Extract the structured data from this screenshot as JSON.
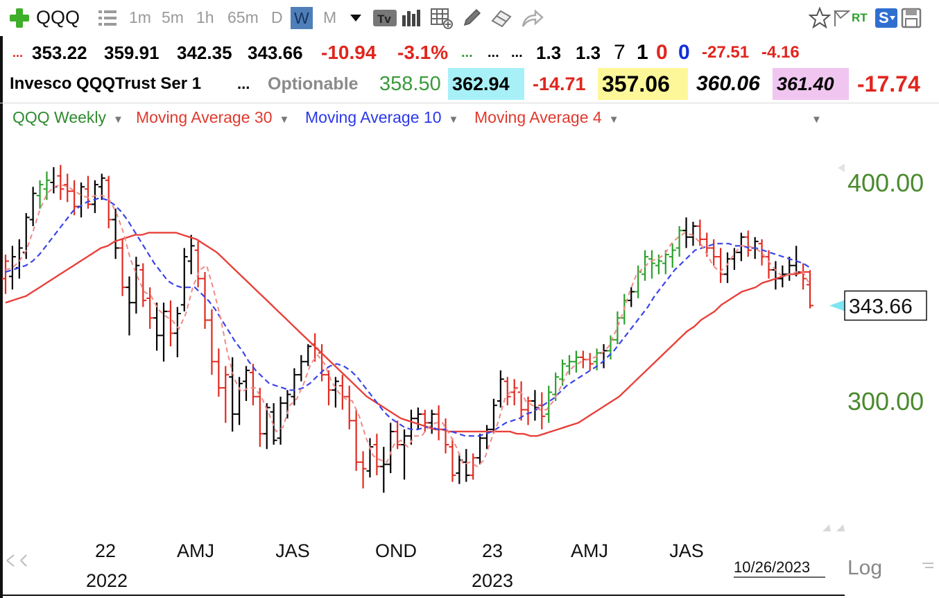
{
  "toolbar": {
    "symbol": "QQQ",
    "intervals": [
      "1m",
      "5m",
      "1h",
      "65m",
      "D",
      "W",
      "M"
    ],
    "active_interval": "W",
    "icons": [
      "add-symbol-icon",
      "list-icon",
      "dropdown-arrow-icon",
      "ticker-text-icon",
      "bar-chart-icon",
      "table-icon",
      "pencil-icon",
      "eraser-icon",
      "share-arrow-icon",
      "star-icon",
      "flag-icon",
      "rt-icon",
      "s-icon",
      "save-icon"
    ],
    "rt_label": "RT",
    "s_label": "S"
  },
  "quote_row1": {
    "lead": "...",
    "open": "353.22",
    "high": "359.91",
    "low": "342.35",
    "close": "343.66",
    "change": "-10.94",
    "change_pct": "-3.1%",
    "dots_green": "...",
    "dots_a": "...",
    "dots_b": "...",
    "val1": "1.3",
    "val2": "1.3",
    "n1": "7",
    "n2": "1",
    "n3": "0",
    "n4": "0",
    "chg2": "-27.51",
    "chg3": "-4.16"
  },
  "quote_row2": {
    "name": "Invesco QQQTrust Ser 1",
    "dots": "...",
    "optionable": "Optionable",
    "v1": "358.50",
    "v2": "362.94",
    "v3": "-14.71",
    "v4": "357.06",
    "v5": "360.06",
    "v6": "361.40",
    "v7": "-17.74",
    "colors": {
      "v2_bg": "#a8f0f8",
      "v4_bg": "#fdf79a",
      "v6_bg": "#f0c6f0"
    }
  },
  "legend": {
    "series_main": "QQQ Weekly",
    "ma30": "Moving Average 30",
    "ma10": "Moving Average 10",
    "ma4": "Moving Average 4",
    "colors": {
      "main": "#2e8a2e",
      "ma30": "#e0392e",
      "ma10": "#2b38e8",
      "ma4": "#e0392e"
    }
  },
  "chart_data": {
    "type": "line",
    "price_type": "weekly OHLC bars",
    "ylim": [
      230,
      420
    ],
    "y_ticks": [
      300,
      400
    ],
    "y_tick_labels": [
      "300.00",
      "400.00"
    ],
    "x_tick_labels": [
      "22",
      "AMJ",
      "JAS",
      "OND",
      "23",
      "AMJ",
      "JAS"
    ],
    "x_year_labels": [
      "2022",
      "2023"
    ],
    "last_price_label": "343.66",
    "last_price": 343.66,
    "date_label": "10/26/2023",
    "scale_label": "Log",
    "bar_colors": {
      "up": "#2aa02a",
      "down": "#e02a20",
      "neutral": "#000000"
    },
    "bars": [
      {
        "o": 356,
        "h": 367,
        "l": 349,
        "c": 364,
        "col": "down"
      },
      {
        "o": 357,
        "h": 371,
        "l": 351,
        "c": 366,
        "col": "neutral"
      },
      {
        "o": 361,
        "h": 374,
        "l": 356,
        "c": 370,
        "col": "neutral"
      },
      {
        "o": 368,
        "h": 386,
        "l": 365,
        "c": 384,
        "col": "neutral"
      },
      {
        "o": 383,
        "h": 398,
        "l": 380,
        "c": 395,
        "col": "neutral"
      },
      {
        "o": 394,
        "h": 401,
        "l": 388,
        "c": 399,
        "col": "up"
      },
      {
        "o": 397,
        "h": 405,
        "l": 392,
        "c": 401,
        "col": "up"
      },
      {
        "o": 400,
        "h": 407,
        "l": 395,
        "c": 398,
        "col": "neutral"
      },
      {
        "o": 403,
        "h": 408,
        "l": 392,
        "c": 397,
        "col": "down"
      },
      {
        "o": 399,
        "h": 404,
        "l": 391,
        "c": 396,
        "col": "red"
      },
      {
        "o": 396,
        "h": 401,
        "l": 385,
        "c": 389,
        "col": "down"
      },
      {
        "o": 389,
        "h": 400,
        "l": 384,
        "c": 398,
        "col": "neutral"
      },
      {
        "o": 397,
        "h": 403,
        "l": 388,
        "c": 390,
        "col": "down"
      },
      {
        "o": 390,
        "h": 401,
        "l": 386,
        "c": 399,
        "col": "neutral"
      },
      {
        "o": 398,
        "h": 404,
        "l": 392,
        "c": 402,
        "col": "neutral"
      },
      {
        "o": 401,
        "h": 403,
        "l": 379,
        "c": 383,
        "col": "down"
      },
      {
        "o": 383,
        "h": 388,
        "l": 365,
        "c": 370,
        "col": "neutral"
      },
      {
        "o": 370,
        "h": 374,
        "l": 348,
        "c": 352,
        "col": "down"
      },
      {
        "o": 352,
        "h": 357,
        "l": 330,
        "c": 345,
        "col": "neutral"
      },
      {
        "o": 345,
        "h": 366,
        "l": 340,
        "c": 362,
        "col": "neutral"
      },
      {
        "o": 360,
        "h": 363,
        "l": 343,
        "c": 346,
        "col": "down"
      },
      {
        "o": 347,
        "h": 352,
        "l": 333,
        "c": 338,
        "col": "down"
      },
      {
        "o": 338,
        "h": 345,
        "l": 323,
        "c": 330,
        "col": "neutral"
      },
      {
        "o": 330,
        "h": 345,
        "l": 318,
        "c": 341,
        "col": "neutral"
      },
      {
        "o": 341,
        "h": 346,
        "l": 325,
        "c": 331,
        "col": "down"
      },
      {
        "o": 331,
        "h": 343,
        "l": 320,
        "c": 340,
        "col": "neutral"
      },
      {
        "o": 344,
        "h": 370,
        "l": 341,
        "c": 366,
        "col": "neutral"
      },
      {
        "o": 364,
        "h": 376,
        "l": 358,
        "c": 371,
        "col": "neutral"
      },
      {
        "o": 369,
        "h": 373,
        "l": 352,
        "c": 356,
        "col": "down"
      },
      {
        "o": 356,
        "h": 359,
        "l": 333,
        "c": 337,
        "col": "down"
      },
      {
        "o": 337,
        "h": 342,
        "l": 312,
        "c": 318,
        "col": "down"
      },
      {
        "o": 318,
        "h": 324,
        "l": 302,
        "c": 306,
        "col": "down"
      },
      {
        "o": 306,
        "h": 316,
        "l": 290,
        "c": 312,
        "col": "down"
      },
      {
        "o": 311,
        "h": 320,
        "l": 286,
        "c": 294,
        "col": "neutral"
      },
      {
        "o": 294,
        "h": 311,
        "l": 289,
        "c": 308,
        "col": "neutral"
      },
      {
        "o": 309,
        "h": 316,
        "l": 300,
        "c": 314,
        "col": "neutral"
      },
      {
        "o": 313,
        "h": 317,
        "l": 298,
        "c": 302,
        "col": "down"
      },
      {
        "o": 302,
        "h": 306,
        "l": 279,
        "c": 285,
        "col": "down"
      },
      {
        "o": 285,
        "h": 299,
        "l": 278,
        "c": 297,
        "col": "neutral"
      },
      {
        "o": 295,
        "h": 299,
        "l": 280,
        "c": 282,
        "col": "neutral"
      },
      {
        "o": 283,
        "h": 302,
        "l": 280,
        "c": 299,
        "col": "neutral"
      },
      {
        "o": 299,
        "h": 305,
        "l": 292,
        "c": 303,
        "col": "neutral"
      },
      {
        "o": 302,
        "h": 315,
        "l": 298,
        "c": 312,
        "col": "neutral"
      },
      {
        "o": 312,
        "h": 321,
        "l": 309,
        "c": 318,
        "col": "neutral"
      },
      {
        "o": 318,
        "h": 326,
        "l": 316,
        "c": 325,
        "col": "neutral"
      },
      {
        "o": 326,
        "h": 331,
        "l": 318,
        "c": 324,
        "col": "down"
      },
      {
        "o": 322,
        "h": 326,
        "l": 309,
        "c": 312,
        "col": "down"
      },
      {
        "o": 312,
        "h": 314,
        "l": 298,
        "c": 305,
        "col": "down"
      },
      {
        "o": 305,
        "h": 311,
        "l": 297,
        "c": 309,
        "col": "neutral"
      },
      {
        "o": 307,
        "h": 312,
        "l": 296,
        "c": 302,
        "col": "down"
      },
      {
        "o": 302,
        "h": 307,
        "l": 287,
        "c": 291,
        "col": "down"
      },
      {
        "o": 291,
        "h": 296,
        "l": 268,
        "c": 272,
        "col": "down"
      },
      {
        "o": 272,
        "h": 277,
        "l": 260,
        "c": 269,
        "col": "down"
      },
      {
        "o": 268,
        "h": 283,
        "l": 265,
        "c": 279,
        "col": "neutral"
      },
      {
        "o": 280,
        "h": 285,
        "l": 266,
        "c": 270,
        "col": "down"
      },
      {
        "o": 270,
        "h": 279,
        "l": 258,
        "c": 271,
        "col": "neutral"
      },
      {
        "o": 271,
        "h": 290,
        "l": 267,
        "c": 286,
        "col": "neutral"
      },
      {
        "o": 286,
        "h": 291,
        "l": 278,
        "c": 280,
        "col": "down"
      },
      {
        "o": 280,
        "h": 287,
        "l": 264,
        "c": 284,
        "col": "neutral"
      },
      {
        "o": 284,
        "h": 296,
        "l": 280,
        "c": 292,
        "col": "neutral"
      },
      {
        "o": 292,
        "h": 297,
        "l": 287,
        "c": 294,
        "col": "neutral"
      },
      {
        "o": 294,
        "h": 296,
        "l": 286,
        "c": 290,
        "col": "down"
      },
      {
        "o": 290,
        "h": 296,
        "l": 285,
        "c": 294,
        "col": "neutral"
      },
      {
        "o": 294,
        "h": 298,
        "l": 282,
        "c": 287,
        "col": "down"
      },
      {
        "o": 287,
        "h": 292,
        "l": 276,
        "c": 280,
        "col": "down"
      },
      {
        "o": 279,
        "h": 283,
        "l": 263,
        "c": 266,
        "col": "down"
      },
      {
        "o": 267,
        "h": 276,
        "l": 262,
        "c": 273,
        "col": "neutral"
      },
      {
        "o": 272,
        "h": 278,
        "l": 263,
        "c": 266,
        "col": "neutral"
      },
      {
        "o": 266,
        "h": 276,
        "l": 264,
        "c": 274,
        "col": "down"
      },
      {
        "o": 274,
        "h": 285,
        "l": 271,
        "c": 283,
        "col": "neutral"
      },
      {
        "o": 283,
        "h": 289,
        "l": 278,
        "c": 287,
        "col": "neutral"
      },
      {
        "o": 287,
        "h": 301,
        "l": 285,
        "c": 298,
        "col": "neutral"
      },
      {
        "o": 300,
        "h": 314,
        "l": 297,
        "c": 310,
        "col": "neutral"
      },
      {
        "o": 309,
        "h": 311,
        "l": 298,
        "c": 302,
        "col": "down"
      },
      {
        "o": 304,
        "h": 310,
        "l": 298,
        "c": 306,
        "col": "down"
      },
      {
        "o": 304,
        "h": 309,
        "l": 291,
        "c": 296,
        "col": "down"
      },
      {
        "o": 296,
        "h": 302,
        "l": 289,
        "c": 300,
        "col": "down"
      },
      {
        "o": 300,
        "h": 305,
        "l": 291,
        "c": 297,
        "col": "neutral"
      },
      {
        "o": 298,
        "h": 304,
        "l": 287,
        "c": 293,
        "col": "down"
      },
      {
        "o": 294,
        "h": 307,
        "l": 290,
        "c": 304,
        "col": "up"
      },
      {
        "o": 303,
        "h": 313,
        "l": 300,
        "c": 311,
        "col": "up"
      },
      {
        "o": 310,
        "h": 319,
        "l": 307,
        "c": 317,
        "col": "up"
      },
      {
        "o": 316,
        "h": 321,
        "l": 312,
        "c": 318,
        "col": "up"
      },
      {
        "o": 318,
        "h": 323,
        "l": 313,
        "c": 320,
        "col": "up"
      },
      {
        "o": 320,
        "h": 323,
        "l": 315,
        "c": 319,
        "col": "red"
      },
      {
        "o": 319,
        "h": 322,
        "l": 314,
        "c": 317,
        "col": "down"
      },
      {
        "o": 318,
        "h": 324,
        "l": 314,
        "c": 322,
        "col": "up"
      },
      {
        "o": 322,
        "h": 326,
        "l": 315,
        "c": 323,
        "col": "neutral"
      },
      {
        "o": 323,
        "h": 330,
        "l": 319,
        "c": 328,
        "col": "up"
      },
      {
        "o": 328,
        "h": 341,
        "l": 326,
        "c": 338,
        "col": "up"
      },
      {
        "o": 338,
        "h": 349,
        "l": 335,
        "c": 346,
        "col": "up"
      },
      {
        "o": 346,
        "h": 352,
        "l": 343,
        "c": 350,
        "col": "neutral"
      },
      {
        "o": 350,
        "h": 362,
        "l": 347,
        "c": 359,
        "col": "up"
      },
      {
        "o": 358,
        "h": 369,
        "l": 355,
        "c": 366,
        "col": "up"
      },
      {
        "o": 365,
        "h": 369,
        "l": 356,
        "c": 363,
        "col": "up"
      },
      {
        "o": 362,
        "h": 367,
        "l": 358,
        "c": 364,
        "col": "up"
      },
      {
        "o": 363,
        "h": 369,
        "l": 358,
        "c": 367,
        "col": "up"
      },
      {
        "o": 366,
        "h": 372,
        "l": 361,
        "c": 369,
        "col": "up"
      },
      {
        "o": 370,
        "h": 380,
        "l": 366,
        "c": 378,
        "col": "up"
      },
      {
        "o": 378,
        "h": 384,
        "l": 370,
        "c": 375,
        "col": "neutral"
      },
      {
        "o": 375,
        "h": 382,
        "l": 371,
        "c": 380,
        "col": "neutral"
      },
      {
        "o": 380,
        "h": 383,
        "l": 371,
        "c": 374,
        "col": "down"
      },
      {
        "o": 374,
        "h": 377,
        "l": 366,
        "c": 370,
        "col": "down"
      },
      {
        "o": 370,
        "h": 374,
        "l": 362,
        "c": 366,
        "col": "down"
      },
      {
        "o": 366,
        "h": 370,
        "l": 354,
        "c": 358,
        "col": "down"
      },
      {
        "o": 358,
        "h": 368,
        "l": 354,
        "c": 365,
        "col": "neutral"
      },
      {
        "o": 365,
        "h": 370,
        "l": 360,
        "c": 368,
        "col": "neutral"
      },
      {
        "o": 368,
        "h": 377,
        "l": 364,
        "c": 375,
        "col": "neutral"
      },
      {
        "o": 375,
        "h": 378,
        "l": 366,
        "c": 369,
        "col": "down"
      },
      {
        "o": 370,
        "h": 375,
        "l": 365,
        "c": 373,
        "col": "neutral"
      },
      {
        "o": 372,
        "h": 374,
        "l": 362,
        "c": 366,
        "col": "down"
      },
      {
        "o": 366,
        "h": 369,
        "l": 356,
        "c": 360,
        "col": "down"
      },
      {
        "o": 360,
        "h": 364,
        "l": 351,
        "c": 356,
        "col": "neutral"
      },
      {
        "o": 356,
        "h": 362,
        "l": 352,
        "c": 358,
        "col": "neutral"
      },
      {
        "o": 358,
        "h": 366,
        "l": 355,
        "c": 362,
        "col": "neutral"
      },
      {
        "o": 362,
        "h": 371,
        "l": 357,
        "c": 359,
        "col": "neutral"
      },
      {
        "o": 359,
        "h": 363,
        "l": 351,
        "c": 356,
        "col": "down"
      },
      {
        "o": 353.22,
        "h": 359.91,
        "l": 342.35,
        "c": 343.66,
        "col": "down"
      }
    ],
    "ma30": [
      345,
      346,
      347,
      348,
      350,
      352,
      354,
      356,
      358,
      360,
      362,
      364,
      366,
      368,
      370,
      371,
      373,
      374,
      375,
      376,
      376,
      377,
      377,
      377,
      377,
      377,
      376,
      375,
      374,
      372,
      370,
      368,
      365,
      362,
      359,
      356,
      353,
      350,
      347,
      344,
      341,
      338,
      335,
      332,
      329,
      326,
      323,
      320,
      317,
      314,
      311,
      308,
      305,
      302,
      300,
      298,
      296,
      294,
      292,
      291,
      290,
      289,
      288,
      287,
      287,
      286,
      286,
      286,
      286,
      286,
      286,
      286,
      286,
      286,
      286,
      285,
      285,
      284,
      284,
      285,
      286,
      287,
      288,
      289,
      290,
      292,
      294,
      296,
      298,
      300,
      302,
      305,
      308,
      311,
      314,
      317,
      320,
      323,
      326,
      329,
      332,
      334,
      337,
      339,
      341,
      344,
      346,
      348,
      350,
      351,
      352,
      354,
      355,
      356,
      357,
      358,
      358,
      359,
      359
    ],
    "ma10": [
      359,
      360,
      361,
      362,
      364,
      367,
      371,
      375,
      379,
      383,
      387,
      389,
      391,
      392,
      393,
      392,
      390,
      387,
      383,
      378,
      373,
      368,
      363,
      359,
      355,
      353,
      352,
      352,
      352,
      349,
      346,
      342,
      337,
      332,
      327,
      323,
      318,
      314,
      311,
      308,
      307,
      306,
      305,
      305,
      306,
      308,
      311,
      314,
      316,
      317,
      316,
      314,
      311,
      307,
      303,
      299,
      295,
      292,
      290,
      288,
      287,
      287,
      288,
      288,
      287,
      287,
      286,
      285,
      284,
      284,
      284,
      285,
      286,
      288,
      290,
      291,
      292,
      294,
      295,
      297,
      299,
      301,
      304,
      307,
      309,
      311,
      313,
      315,
      317,
      320,
      323,
      327,
      331,
      335,
      339,
      343,
      348,
      352,
      356,
      360,
      363,
      366,
      369,
      370,
      371,
      372,
      372,
      372,
      371,
      371,
      370,
      370,
      369,
      368,
      367,
      366,
      365,
      364,
      363,
      361
    ],
    "ma4": [
      360,
      361,
      364,
      369,
      378,
      388,
      395,
      398,
      399,
      398,
      396,
      394,
      393,
      394,
      394,
      392,
      386,
      377,
      365,
      357,
      350,
      348,
      342,
      339,
      337,
      333,
      340,
      352,
      360,
      362,
      351,
      338,
      322,
      310,
      304,
      306,
      306,
      301,
      294,
      286,
      288,
      298,
      301,
      308,
      317,
      321,
      317,
      309,
      304,
      301,
      300,
      293,
      283,
      275,
      273,
      272,
      280,
      282,
      279,
      284,
      284,
      288,
      290,
      290,
      285,
      279,
      271,
      272,
      270,
      273,
      282,
      290,
      301,
      305,
      306,
      300,
      298,
      296,
      296,
      300,
      306,
      313,
      316,
      318,
      319,
      320,
      322,
      325,
      332,
      340,
      350,
      358,
      361,
      364,
      365,
      367,
      372,
      375,
      377,
      376,
      373,
      368,
      362,
      359,
      362,
      367,
      371,
      371,
      370,
      368,
      364,
      360,
      357,
      358,
      359,
      359,
      353
    ]
  }
}
